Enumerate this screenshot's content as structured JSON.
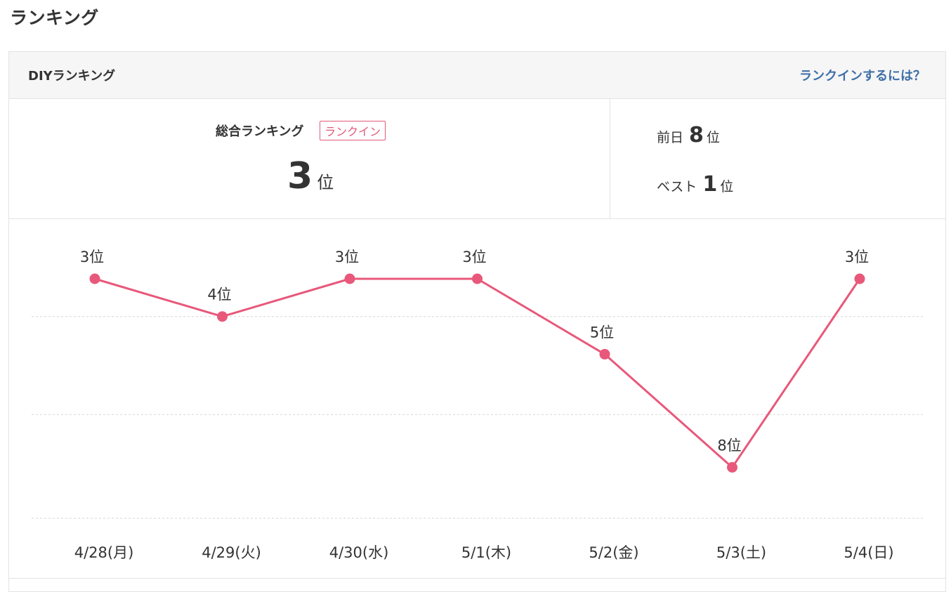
{
  "page": {
    "title": "ランキング"
  },
  "card": {
    "title": "DIYランキング",
    "help_link": "ランクインするには？"
  },
  "summary": {
    "overall_label": "総合ランキング",
    "badge": "ランクイン",
    "overall_rank": "3",
    "rank_unit": "位",
    "previous_day_label": "前日",
    "previous_day_rank": "8",
    "best_label": "ベスト",
    "best_rank": "1"
  },
  "colors": {
    "accent": "#e8587a",
    "link": "#3f6fa8",
    "gridline": "#d6d6d6",
    "text": "#333333"
  },
  "chart_data": {
    "type": "line",
    "categories": [
      "4/28(月)",
      "4/29(火)",
      "4/30(水)",
      "5/1(木)",
      "5/2(金)",
      "5/3(土)",
      "5/4(日)"
    ],
    "values": [
      3,
      4,
      3,
      3,
      5,
      8,
      3
    ],
    "data_labels": [
      "3位",
      "4位",
      "3位",
      "3位",
      "5位",
      "8位",
      "3位"
    ],
    "y_inverted": true,
    "ylim": [
      2,
      10
    ],
    "gridlines": [
      4,
      6.6,
      9.35
    ],
    "grid": true,
    "legend": "none",
    "title": "",
    "xlabel": "",
    "ylabel": ""
  }
}
